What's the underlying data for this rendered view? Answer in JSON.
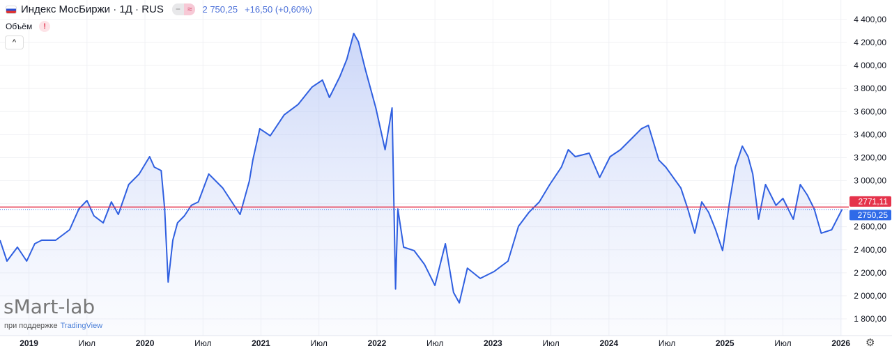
{
  "header": {
    "title": "Индекс МосБиржи · 1Д · RUS",
    "pill_left": "−",
    "pill_right": "≈",
    "price": "2 750,25",
    "change": "+16,50 (+0,60%)"
  },
  "volume": {
    "label": "Объём",
    "warning": "!"
  },
  "collapse_label": "^",
  "watermark": {
    "logo": "sMart-lab",
    "support": "при поддержке",
    "partner": "TradingView"
  },
  "colors": {
    "line": "#2f5fe0",
    "red": "#e5334b",
    "blue_label": "#2f6ae8"
  },
  "chart_data": {
    "type": "area",
    "xlim": [
      2018.75,
      2026.05
    ],
    "ylim": [
      1760,
      4470
    ],
    "yticks": [
      1800,
      2000,
      2200,
      2400,
      2600,
      2800,
      3000,
      3200,
      3400,
      3600,
      3800,
      4000,
      4200,
      4400
    ],
    "ytick_labels": [
      "1 800,00",
      "2 000,00",
      "2 200,00",
      "2 400,00",
      "2 600,00",
      "",
      "3 000,00",
      "3 200,00",
      "3 400,00",
      "3 600,00",
      "3 800,00",
      "4 000,00",
      "4 200,00",
      "4 400,00"
    ],
    "xticks": [
      {
        "v": 2019,
        "l": "2019",
        "b": true
      },
      {
        "v": 2019.5,
        "l": "Июл"
      },
      {
        "v": 2020,
        "l": "2020",
        "b": true
      },
      {
        "v": 2020.5,
        "l": "Июл"
      },
      {
        "v": 2021,
        "l": "2021",
        "b": true
      },
      {
        "v": 2021.5,
        "l": "Июл"
      },
      {
        "v": 2022,
        "l": "2022",
        "b": true
      },
      {
        "v": 2022.5,
        "l": "Июл"
      },
      {
        "v": 2023,
        "l": "2023",
        "b": true
      },
      {
        "v": 2023.5,
        "l": "Июл"
      },
      {
        "v": 2024,
        "l": "2024",
        "b": true
      },
      {
        "v": 2024.5,
        "l": "Июл"
      },
      {
        "v": 2025,
        "l": "2025",
        "b": true
      },
      {
        "v": 2025.5,
        "l": "Июл"
      },
      {
        "v": 2026,
        "l": "2026",
        "b": true
      }
    ],
    "lines": [
      {
        "value": 2771.11,
        "label": "2771,11",
        "color": "#e5334b"
      },
      {
        "value": 2750.25,
        "label": "2750,25",
        "color": "#2f6ae8"
      }
    ],
    "x": [
      2018.75,
      2018.81,
      2018.9,
      2018.98,
      2019.05,
      2019.11,
      2019.23,
      2019.35,
      2019.43,
      2019.5,
      2019.56,
      2019.64,
      2019.71,
      2019.77,
      2019.86,
      2019.95,
      2020.04,
      2020.08,
      2020.14,
      2020.17,
      2020.2,
      2020.24,
      2020.28,
      2020.34,
      2020.4,
      2020.46,
      2020.55,
      2020.67,
      2020.82,
      2020.9,
      2020.93,
      2020.99,
      2021.08,
      2021.2,
      2021.32,
      2021.44,
      2021.53,
      2021.59,
      2021.68,
      2021.74,
      2021.8,
      2021.84,
      2021.9,
      2021.99,
      2022.07,
      2022.13,
      2022.16,
      2022.18,
      2022.23,
      2022.32,
      2022.41,
      2022.5,
      2022.59,
      2022.66,
      2022.71,
      2022.78,
      2022.89,
      2023.01,
      2023.13,
      2023.22,
      2023.31,
      2023.4,
      2023.49,
      2023.59,
      2023.65,
      2023.71,
      2023.83,
      2023.92,
      2024.01,
      2024.1,
      2024.19,
      2024.28,
      2024.34,
      2024.43,
      2024.49,
      2024.62,
      2024.68,
      2024.74,
      2024.8,
      2024.86,
      2024.92,
      2024.98,
      2025.04,
      2025.09,
      2025.15,
      2025.2,
      2025.24,
      2025.29,
      2025.35,
      2025.44,
      2025.5,
      2025.59,
      2025.65,
      2025.71,
      2025.77,
      2025.83,
      2025.92,
      2026.01
    ],
    "y": [
      2483,
      2302,
      2423,
      2302,
      2453,
      2483,
      2483,
      2574,
      2755,
      2828,
      2695,
      2634,
      2816,
      2707,
      2967,
      3058,
      3209,
      3118,
      3088,
      2755,
      2120,
      2483,
      2634,
      2695,
      2786,
      2816,
      3058,
      2937,
      2707,
      2997,
      3179,
      3451,
      3390,
      3572,
      3662,
      3813,
      3874,
      3723,
      3904,
      4055,
      4279,
      4207,
      3965,
      3632,
      3269,
      3632,
      2060,
      2755,
      2423,
      2393,
      2272,
      2091,
      2453,
      2030,
      1939,
      2241,
      2151,
      2211,
      2302,
      2604,
      2725,
      2816,
      2967,
      3118,
      3269,
      3209,
      3239,
      3028,
      3209,
      3269,
      3360,
      3451,
      3481,
      3179,
      3118,
      2937,
      2755,
      2544,
      2816,
      2725,
      2574,
      2393,
      2816,
      3118,
      3300,
      3209,
      3058,
      2665,
      2967,
      2786,
      2846,
      2665,
      2967,
      2876,
      2755,
      2544,
      2574,
      2750.25
    ]
  }
}
